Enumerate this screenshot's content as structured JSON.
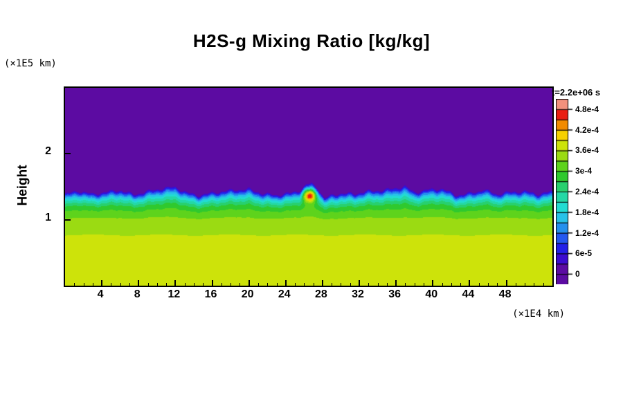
{
  "title": "H2S-g Mixing Ratio [kg/kg]",
  "axes": {
    "y_unit_label": "(×1E5 km)",
    "x_unit_label": "(×1E4 km)",
    "y_axis_label": "Height",
    "x_ticks": [
      4,
      8,
      12,
      16,
      20,
      24,
      28,
      32,
      36,
      40,
      44,
      48
    ],
    "y_ticks": [
      1,
      2
    ],
    "xlim": [
      0,
      53
    ],
    "ylim": [
      0,
      3
    ]
  },
  "colorbar": {
    "time_label": "t=2.2e+06 s",
    "tick_labels": [
      "0",
      "6e-5",
      "1.2e-4",
      "1.8e-4",
      "2.4e-4",
      "3e-4",
      "3.6e-4",
      "4.2e-4",
      "4.8e-4"
    ]
  },
  "chart_data": {
    "type": "heatmap",
    "title": "H2S-g Mixing Ratio [kg/kg]",
    "xlabel": "(×1E4 km)",
    "ylabel": "Height (×1E5 km)",
    "time_annotation": "t=2.2e+06 s",
    "xlim": [
      0,
      53
    ],
    "ylim": [
      0,
      3
    ],
    "levels": [
      0,
      3e-05,
      6e-05,
      9e-05,
      0.00012,
      0.00015,
      0.00018,
      0.00021,
      0.00024,
      0.00027,
      0.0003,
      0.00033,
      0.00036,
      0.00039,
      0.00042,
      0.00045,
      0.00048
    ],
    "palette": [
      "#5c0ba2",
      "#3c0cd0",
      "#2420e8",
      "#2458f0",
      "#2490ee",
      "#28c2e8",
      "#22dcd2",
      "#24d8a6",
      "#28d06e",
      "#2fc92e",
      "#5ed31c",
      "#9bdb12",
      "#cde30a",
      "#f6d100",
      "#f28b00",
      "#ea1e12",
      "#f2917d"
    ],
    "vertical_profile": {
      "y": [
        0,
        0.6,
        0.85,
        1.0,
        1.1,
        1.2,
        1.28,
        1.33,
        1.37,
        1.4,
        1.42,
        1.45
      ],
      "v": [
        0.000372,
        0.00037,
        0.000355,
        0.000335,
        0.000315,
        0.000275,
        0.00022,
        0.00017,
        0.000115,
        6e-05,
        2e-05,
        0
      ]
    },
    "interface_height": {
      "reference": 1.42,
      "blend_base": 0.95,
      "x": [
        0,
        1.5,
        3,
        4.5,
        6,
        7.5,
        9,
        10.5,
        12,
        13.2,
        14.5,
        16,
        18,
        20,
        21.5,
        23,
        24.5,
        25.6,
        26.2,
        26.8,
        27.5,
        28.2,
        29,
        30,
        31.5,
        33,
        34.5,
        36,
        36.9,
        38,
        39.5,
        41,
        42.5,
        44,
        45.5,
        47,
        48.5,
        50,
        51.5,
        53
      ],
      "h": [
        1.4,
        1.44,
        1.38,
        1.42,
        1.46,
        1.39,
        1.43,
        1.47,
        1.5,
        1.42,
        1.38,
        1.41,
        1.44,
        1.47,
        1.41,
        1.38,
        1.4,
        1.44,
        1.52,
        1.55,
        1.48,
        1.33,
        1.38,
        1.41,
        1.39,
        1.43,
        1.45,
        1.49,
        1.52,
        1.42,
        1.45,
        1.47,
        1.38,
        1.41,
        1.46,
        1.38,
        1.42,
        1.44,
        1.4,
        1.43
      ]
    },
    "plume": {
      "x": 26.6,
      "y": 1.37,
      "sigma_x": 0.7,
      "sigma_y": 0.095,
      "amplitude": 0.00025
    }
  }
}
